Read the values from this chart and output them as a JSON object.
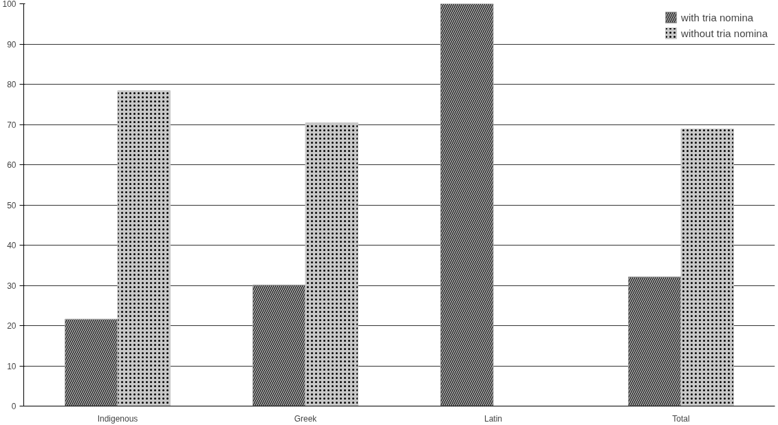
{
  "chart_data": {
    "type": "bar",
    "categories": [
      "Indigenous",
      "Greek",
      "Latin",
      "Total"
    ],
    "series": [
      {
        "name": "with tria nomina",
        "color": "#a0a0a0",
        "values": [
          21.6,
          30.1,
          100,
          32.1
        ]
      },
      {
        "name": "without tria nomina",
        "color": "#c8c8c8",
        "values": [
          78.4,
          70.4,
          0,
          68.9
        ]
      }
    ],
    "ylim": [
      0,
      100
    ],
    "yticks": [
      0,
      10,
      20,
      30,
      40,
      50,
      60,
      70,
      80,
      90,
      100
    ],
    "grid": "y",
    "legend": "top right"
  }
}
